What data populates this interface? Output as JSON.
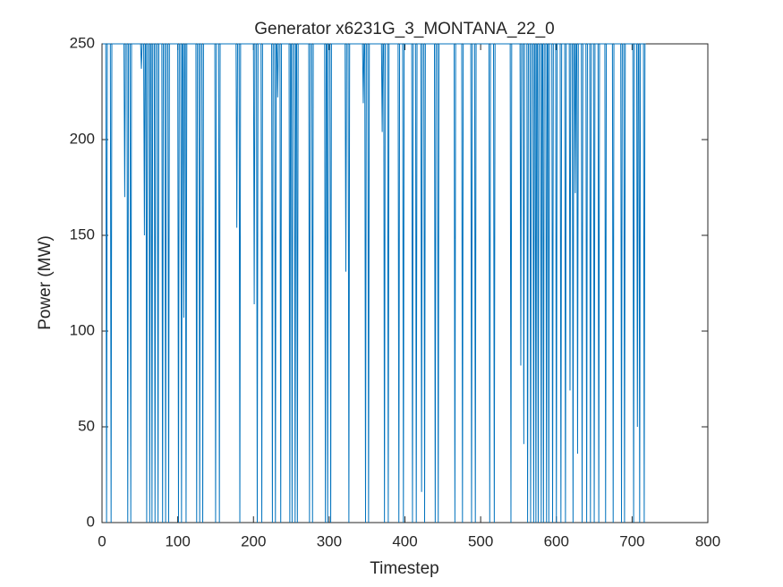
{
  "chart_data": {
    "type": "line",
    "title": "Generator x6231G_3_MONTANA_22_0",
    "xlabel": "Timestep",
    "ylabel": "Power (MW)",
    "color": "#0072bd",
    "xlim": [
      0,
      800
    ],
    "xticks": [
      0,
      100,
      200,
      300,
      400,
      500,
      600,
      700,
      800
    ],
    "ylim": [
      0,
      250
    ],
    "yticks": [
      0,
      50,
      100,
      150,
      200,
      250
    ],
    "x": [
      1,
      5,
      6,
      7,
      11,
      12,
      13,
      29,
      30,
      31,
      33,
      34,
      35,
      37,
      38,
      39,
      51,
      52,
      53,
      55,
      56,
      57,
      58,
      59,
      60,
      62,
      63,
      64,
      65,
      66,
      67,
      69,
      70,
      71,
      73,
      74,
      75,
      79,
      80,
      81,
      83,
      84,
      85,
      87,
      88,
      89,
      100,
      101,
      102,
      104,
      105,
      106,
      107,
      108,
      109,
      110,
      111,
      112,
      124,
      125,
      126,
      128,
      129,
      130,
      132,
      133,
      134,
      149,
      150,
      151,
      154,
      155,
      156,
      177,
      178,
      179,
      181,
      182,
      183,
      200,
      201,
      202,
      204,
      205,
      206,
      210,
      211,
      212,
      224,
      225,
      226,
      228,
      229,
      230,
      231,
      232,
      233,
      235,
      236,
      237,
      247,
      248,
      249,
      250,
      251,
      252,
      254,
      255,
      256,
      257,
      258,
      259,
      273,
      274,
      275,
      277,
      278,
      279,
      294,
      295,
      296,
      297,
      298,
      299,
      301,
      302,
      303,
      321,
      322,
      323,
      325,
      326,
      327,
      344,
      345,
      346,
      347,
      348,
      349,
      351,
      352,
      353,
      369,
      370,
      371,
      372,
      373,
      374,
      377,
      378,
      379,
      391,
      392,
      393,
      397,
      398,
      399,
      409,
      410,
      411,
      414,
      415,
      416,
      421,
      422,
      423,
      425,
      426,
      427,
      439,
      440,
      441,
      443,
      444,
      445,
      465,
      466,
      467,
      475,
      476,
      477,
      487,
      488,
      489,
      492,
      493,
      494,
      511,
      512,
      513,
      517,
      518,
      519,
      539,
      540,
      541,
      552,
      553,
      554,
      556,
      557,
      558,
      561,
      562,
      563,
      565,
      566,
      567,
      569,
      570,
      571,
      572,
      573,
      574,
      575,
      576,
      577,
      579,
      580,
      581,
      582,
      583,
      584,
      586,
      587,
      588,
      589,
      590,
      591,
      594,
      595,
      596,
      599,
      600,
      601,
      605,
      606,
      607,
      611,
      612,
      613,
      617,
      618,
      619,
      621,
      622,
      623,
      624,
      625,
      626,
      627,
      628,
      629,
      633,
      634,
      635,
      639,
      640,
      641,
      644,
      645,
      646,
      649,
      650,
      651,
      655,
      656,
      657,
      664,
      665,
      666,
      674,
      675,
      676,
      685,
      686,
      687,
      689,
      690,
      691,
      701,
      702,
      703,
      706,
      707,
      708,
      709,
      710,
      711,
      715,
      716,
      717,
      718
    ],
    "values": [
      250,
      250,
      0,
      250,
      250,
      0,
      250,
      250,
      170,
      250,
      250,
      0,
      250,
      250,
      0,
      250,
      250,
      237,
      250,
      250,
      150,
      250,
      250,
      0,
      250,
      250,
      0,
      250,
      250,
      0,
      250,
      250,
      0,
      250,
      250,
      0,
      250,
      250,
      0,
      250,
      250,
      0,
      250,
      250,
      0,
      250,
      250,
      0,
      250,
      250,
      0,
      250,
      250,
      107,
      250,
      250,
      0,
      250,
      250,
      0,
      250,
      250,
      0,
      250,
      250,
      0,
      250,
      250,
      0,
      250,
      250,
      0,
      250,
      250,
      154,
      250,
      250,
      0,
      250,
      250,
      114,
      250,
      250,
      0,
      250,
      250,
      0,
      250,
      250,
      0,
      250,
      250,
      0,
      250,
      250,
      222,
      250,
      250,
      0,
      250,
      250,
      0,
      250,
      250,
      0,
      250,
      250,
      0,
      250,
      250,
      0,
      250,
      250,
      0,
      250,
      250,
      0,
      250,
      250,
      0,
      250,
      250,
      0,
      250,
      250,
      0,
      250,
      250,
      131,
      250,
      250,
      0,
      250,
      250,
      219,
      250,
      250,
      0,
      250,
      250,
      0,
      250,
      250,
      204,
      250,
      250,
      0,
      250,
      250,
      0,
      250,
      250,
      0,
      250,
      250,
      0,
      250,
      250,
      0,
      250,
      250,
      0,
      250,
      250,
      16,
      250,
      250,
      0,
      250,
      250,
      0,
      250,
      250,
      0,
      250,
      250,
      0,
      250,
      250,
      0,
      250,
      250,
      0,
      250,
      250,
      0,
      250,
      250,
      0,
      250,
      250,
      0,
      250,
      250,
      0,
      250,
      250,
      82,
      250,
      250,
      41,
      250,
      250,
      0,
      250,
      250,
      0,
      250,
      250,
      0,
      250,
      250,
      0,
      250,
      250,
      0,
      250,
      250,
      0,
      250,
      250,
      0,
      250,
      250,
      0,
      250,
      250,
      0,
      250,
      250,
      0,
      250,
      250,
      0,
      250,
      250,
      0,
      250,
      250,
      0,
      250,
      250,
      69,
      250,
      250,
      0,
      250,
      250,
      172,
      250,
      250,
      36,
      250,
      250,
      0,
      250,
      250,
      0,
      250,
      250,
      0,
      250,
      250,
      0,
      250,
      250,
      0,
      250,
      250,
      0,
      250,
      250,
      0,
      250,
      250,
      0,
      250,
      250,
      0,
      250,
      250,
      0,
      250,
      250,
      50,
      250,
      250,
      0,
      250,
      250,
      0,
      250,
      250
    ]
  }
}
